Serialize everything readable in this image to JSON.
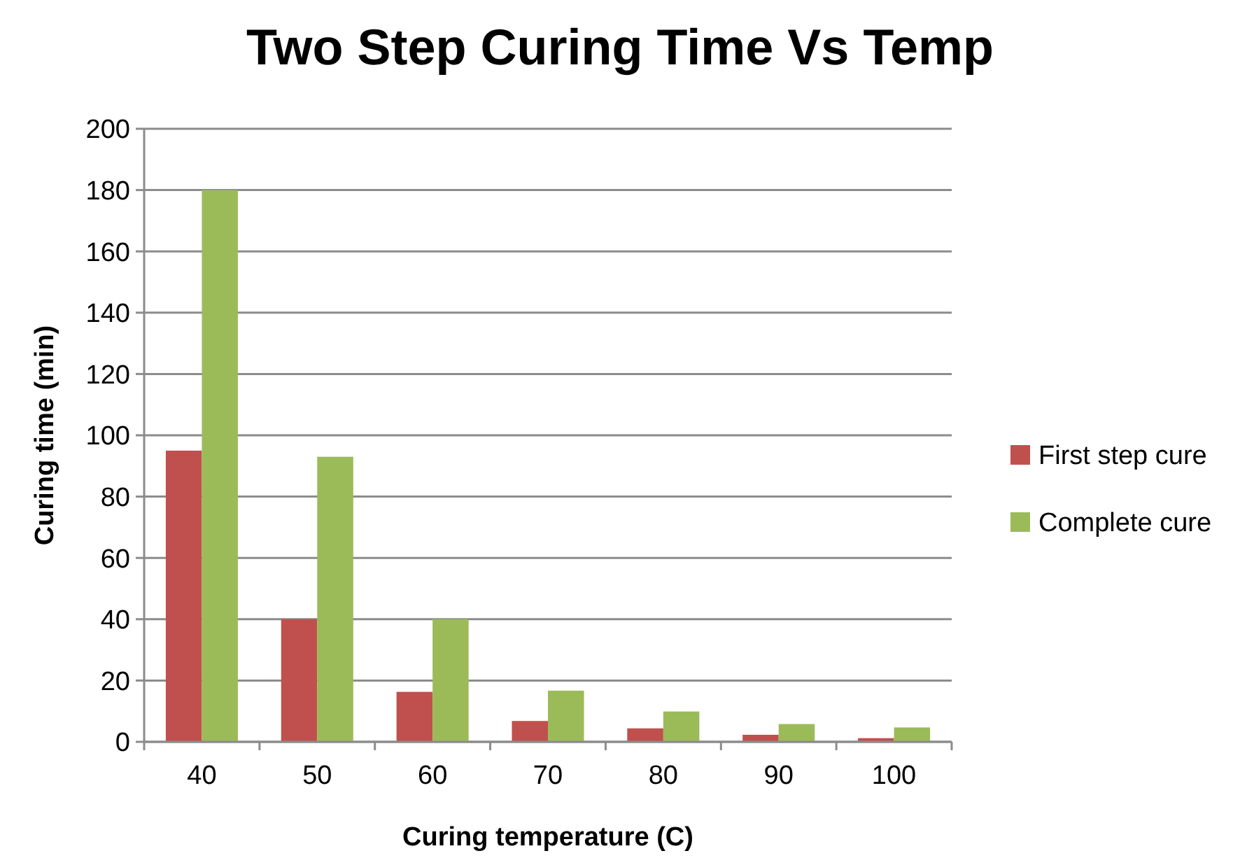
{
  "chart_data": {
    "type": "bar",
    "title": "Two Step Curing Time Vs Temp",
    "xlabel": "Curing temperature (C)",
    "ylabel": "Curing time (min)",
    "categories": [
      "40",
      "50",
      "60",
      "70",
      "80",
      "90",
      "100"
    ],
    "series": [
      {
        "name": "First step cure",
        "color": "#c0504d",
        "values": [
          95,
          40,
          16.3,
          6.8,
          4.4,
          2.3,
          1.2
        ]
      },
      {
        "name": "Complete cure",
        "color": "#9bbb59",
        "values": [
          180,
          93,
          40,
          16.7,
          9.9,
          5.8,
          4.7
        ]
      }
    ],
    "ylim": [
      0,
      200
    ],
    "yticks": [
      0,
      20,
      40,
      60,
      80,
      100,
      120,
      140,
      160,
      180,
      200
    ],
    "grid": "y",
    "legend": "right"
  }
}
